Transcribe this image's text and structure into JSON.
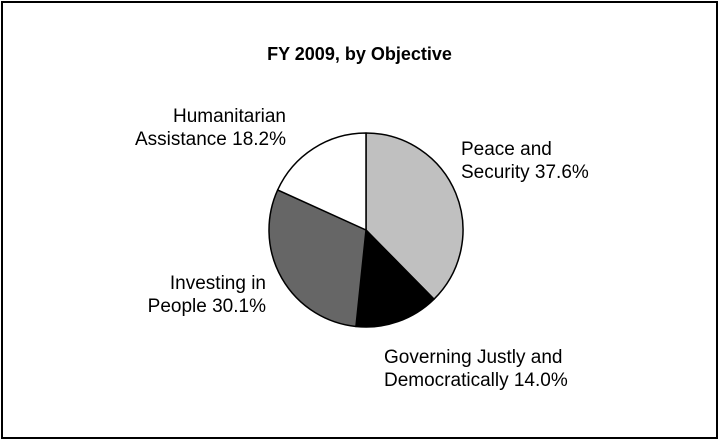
{
  "chart_data": {
    "type": "pie",
    "title": "FY 2009, by Objective",
    "slices": [
      {
        "name": "Peace and Security",
        "value": 37.6,
        "label_lines": [
          "Peace and",
          "Security 37.6%"
        ],
        "color": "#c0c0c0"
      },
      {
        "name": "Governing Justly and Democratically",
        "value": 14.0,
        "label_lines": [
          "Governing Justly and",
          "Democratically 14.0%"
        ],
        "color": "#000000"
      },
      {
        "name": "Investing in People",
        "value": 30.1,
        "label_lines": [
          "Investing in",
          "People 30.1%"
        ],
        "color": "#666666"
      },
      {
        "name": "Humanitarian Assistance",
        "value": 18.2,
        "label_lines": [
          "Humanitarian",
          "Assistance 18.2%"
        ],
        "color": "#ffffff"
      }
    ],
    "legend": "none",
    "outline_color": "#000000"
  }
}
